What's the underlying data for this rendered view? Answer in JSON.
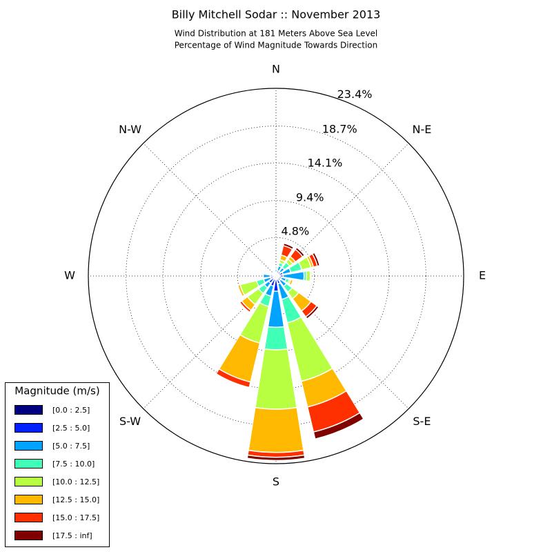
{
  "chart_data": {
    "type": "windrose",
    "title": "Billy Mitchell Sodar :: November 2013",
    "subtitle": [
      "Wind Distribution at 181 Meters Above Sea Level",
      "Percentage of Wind Magnitude Towards Direction"
    ],
    "categories": [
      "N",
      null,
      "N-E",
      null,
      "E",
      null,
      "S-E",
      null,
      "S",
      null,
      "S-W",
      null,
      "W",
      null,
      "N-W",
      null
    ],
    "rlim": [
      0,
      23.4
    ],
    "rticks": [
      {
        "value": 4.8,
        "label": "4.8%"
      },
      {
        "value": 9.4,
        "label": "9.4%"
      },
      {
        "value": 14.1,
        "label": "14.1%"
      },
      {
        "value": 18.7,
        "label": "18.7%"
      },
      {
        "value": 23.4,
        "label": "23.4%"
      }
    ],
    "grid": true,
    "legend_title": "Magnitude (m/s)",
    "legend": "lower left",
    "series": [
      {
        "name": "[0.0 : 2.5]",
        "color": "#000080",
        "values": [
          0.2,
          0.3,
          0.3,
          0.3,
          0.3,
          0.3,
          0.3,
          0.4,
          0.4,
          0.3,
          0.3,
          0.3,
          0.2,
          0.2,
          0.2,
          0.2
        ]
      },
      {
        "name": "[2.5 : 5.0]",
        "color": "#0020ff",
        "values": [
          0.3,
          0.4,
          0.4,
          0.6,
          0.6,
          0.4,
          0.4,
          0.6,
          1.5,
          1.0,
          0.8,
          0.4,
          0.5,
          0.3,
          0.2,
          0.2
        ]
      },
      {
        "name": "[5.0 : 7.5]",
        "color": "#00a4ff",
        "values": [
          0.3,
          0.6,
          0.6,
          1.0,
          2.6,
          0.6,
          0.9,
          2.0,
          4.5,
          1.3,
          0.7,
          0.9,
          0.9,
          0.2,
          0.1,
          0
        ]
      },
      {
        "name": "[7.5 : 10.0]",
        "color": "#40ffb7",
        "values": [
          0.2,
          0.4,
          0.8,
          1.4,
          0.3,
          0.4,
          0.9,
          3.0,
          2.8,
          1.3,
          0.9,
          0.9,
          0,
          0,
          0,
          0
        ]
      },
      {
        "name": "[10.0 : 12.5]",
        "color": "#b7ff40",
        "values": [
          0,
          0.4,
          0.5,
          1.2,
          0.5,
          0.2,
          1.0,
          7.5,
          7.4,
          4.7,
          1.7,
          2.1,
          0,
          0,
          0,
          0
        ]
      },
      {
        "name": "[12.5 : 15.0]",
        "color": "#ffb900",
        "values": [
          0,
          0.6,
          0.4,
          0.3,
          0,
          0.3,
          1.9,
          3.3,
          5.4,
          5.0,
          0.9,
          0.3,
          0,
          0,
          0,
          0
        ]
      },
      {
        "name": "[15.0 : 17.5]",
        "color": "#ff3000",
        "values": [
          0,
          1.2,
          1.1,
          0.5,
          0,
          0,
          0.9,
          3.2,
          0.6,
          0.7,
          0.3,
          0,
          0,
          0,
          0,
          0
        ]
      },
      {
        "name": "[17.5 : inf]",
        "color": "#800000",
        "values": [
          0,
          0.3,
          0.3,
          0.3,
          0,
          0,
          0.3,
          0.9,
          0.4,
          0,
          0,
          0,
          0,
          0,
          0,
          0
        ]
      }
    ]
  }
}
